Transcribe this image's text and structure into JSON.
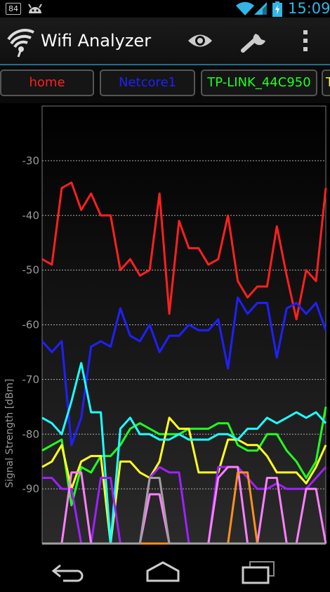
{
  "status_bar": {
    "notification_count": "84",
    "time": "15:09",
    "icons": [
      "android-icon",
      "wifi-icon",
      "cell-signal-icon",
      "battery-charging-icon"
    ]
  },
  "action_bar": {
    "title": "Wifi Analyzer",
    "icons": [
      "wifi-analyzer-logo-icon",
      "eye-icon",
      "wrench-icon",
      "overflow-menu-icon"
    ]
  },
  "network_tabs": [
    {
      "label": "home",
      "color": "#ff2020"
    },
    {
      "label": "Netcore1",
      "color": "#2020ff"
    },
    {
      "label": "TP-LINK_44C950",
      "color": "#20ff20"
    },
    {
      "label": "T",
      "color": "#ffff20"
    }
  ],
  "chart_data": {
    "type": "line",
    "ylabel": "Signal Strength [dBm]",
    "ylim": [
      -100,
      -20
    ],
    "yticks": [
      "-30",
      "-40",
      "-50",
      "-60",
      "-70",
      "-80",
      "-90"
    ],
    "grid": true,
    "series": [
      {
        "color": "#ff2020",
        "values": [
          -48,
          -49,
          -35,
          -34,
          -39,
          -36,
          -40,
          -40,
          -50,
          -48,
          -51,
          -50,
          -36,
          -58,
          -41,
          -46,
          -46,
          -49,
          -48,
          -40,
          -52,
          -55,
          -53,
          -53,
          -42,
          -51,
          -59,
          -50,
          -52,
          -35
        ]
      },
      {
        "color": "#2020ff",
        "values": [
          -63,
          -65,
          -63,
          -82,
          -77,
          -64,
          -63,
          -64,
          -57,
          -62,
          -63,
          -60,
          -65,
          -62,
          -62,
          -60,
          -61,
          -61,
          -59,
          -68,
          -55,
          -58,
          -56,
          -56,
          -66,
          -57,
          -56,
          -58,
          -56,
          -61
        ]
      },
      {
        "color": "#20ff20",
        "values": [
          -83,
          -82,
          -81,
          -93,
          -86,
          -87,
          -84,
          -84,
          -82,
          -79,
          -78,
          -79,
          -80,
          -80,
          -80,
          -79,
          -79,
          -79,
          -78,
          -78,
          -82,
          -83,
          -83,
          -80,
          -80,
          -83,
          -85,
          -88,
          -85,
          -75
        ]
      },
      {
        "color": "#ffff20",
        "values": [
          -86,
          -85,
          -82,
          -90,
          -85,
          -84,
          -84,
          -100,
          -85,
          -85,
          -87,
          -88,
          -85,
          -77,
          -79,
          -79,
          -87,
          -87,
          -87,
          -81,
          -81,
          -82,
          -82,
          -84,
          -87,
          -87,
          -87,
          -89,
          -86,
          -82
        ]
      },
      {
        "color": "#20ffff",
        "values": [
          -77,
          -78,
          -80,
          -74,
          -67,
          -76,
          -76,
          -100,
          -79,
          -77,
          -80,
          -80,
          -81,
          -81,
          -80,
          -81,
          -81,
          -81,
          -80,
          -80,
          -81,
          -79,
          -79,
          -77,
          -78,
          -77,
          -76,
          -77,
          -76,
          -78
        ]
      },
      {
        "color": "#a020ff",
        "values": [
          -88,
          -88,
          -90,
          -90,
          -100,
          -100,
          -88,
          -88,
          -100,
          -100,
          -100,
          -88,
          -86,
          -87,
          -87,
          -100,
          -100,
          -100,
          -86,
          -86,
          -86,
          -88,
          -90,
          -90,
          -89,
          -90,
          -90,
          -90,
          -88,
          -86
        ]
      },
      {
        "color": "#ff80ff",
        "values": [
          -100,
          -100,
          -100,
          -87,
          -87,
          -100,
          -100,
          -100,
          -100,
          -100,
          -100,
          -91,
          -91,
          -100,
          -100,
          -100,
          -100,
          -100,
          -88,
          -86,
          -86,
          -100,
          -100,
          -88,
          -88,
          -100,
          -100,
          -90,
          -90,
          -100
        ]
      },
      {
        "color": "#ff9020",
        "values": [
          -100,
          -100,
          -100,
          -100,
          -100,
          -100,
          -100,
          -100,
          -100,
          -100,
          -100,
          -100,
          -100,
          -100,
          -100,
          -100,
          -100,
          -100,
          -100,
          -100,
          -87,
          -87,
          -100,
          -100,
          -100,
          -100,
          -100,
          -100,
          -100,
          -100
        ]
      },
      {
        "color": "#a0a0a0",
        "values": [
          -100,
          -100,
          -100,
          -100,
          -100,
          -100,
          -100,
          -100,
          -100,
          -100,
          -100,
          -88,
          -88,
          -100,
          -100,
          -100,
          -100,
          -100,
          -100,
          -100,
          -100,
          -100,
          -100,
          -100,
          -100,
          -100,
          -100,
          -100,
          -100,
          -100
        ]
      }
    ]
  },
  "nav_bar": {
    "icons": [
      "back-icon",
      "home-icon",
      "recent-apps-icon"
    ]
  }
}
